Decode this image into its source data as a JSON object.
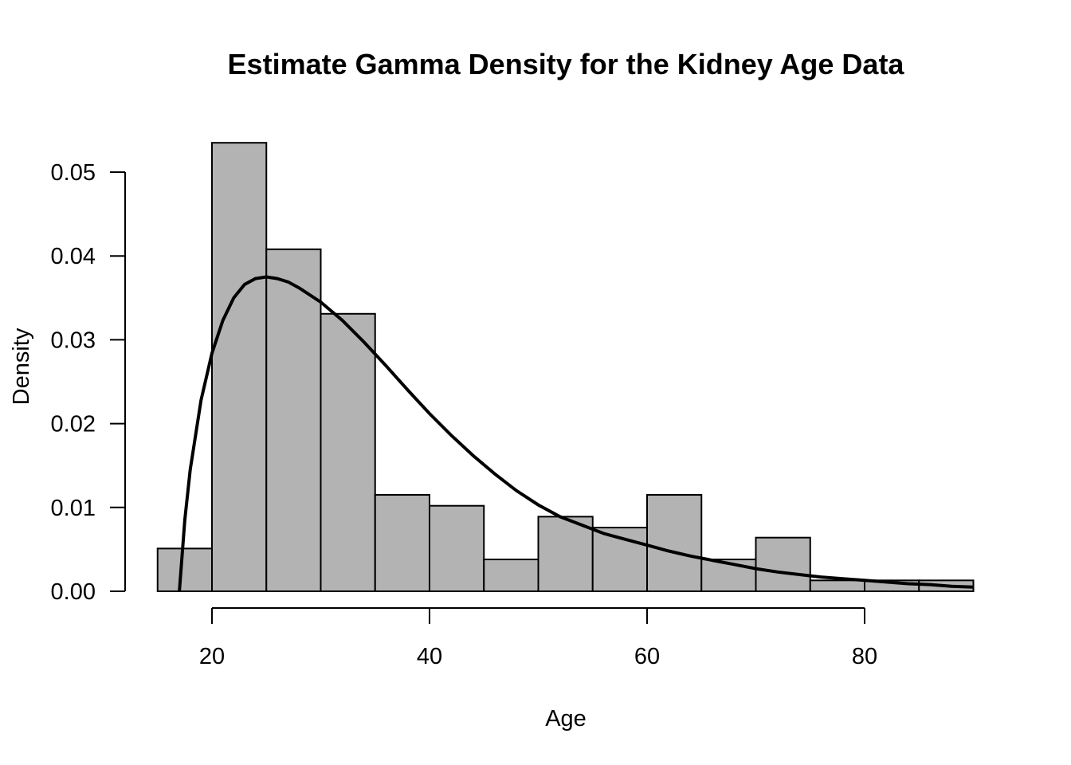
{
  "chart_data": {
    "type": "bar",
    "title": "Estimate Gamma Density for the Kidney Age Data",
    "xlabel": "Age",
    "ylabel": "Density",
    "xlim": [
      15,
      90
    ],
    "ylim": [
      0,
      0.05
    ],
    "x_ticks": [
      20,
      40,
      60,
      80
    ],
    "y_ticks": [
      0.0,
      0.01,
      0.02,
      0.03,
      0.04,
      0.05
    ],
    "x_tick_labels": [
      "20",
      "40",
      "60",
      "80"
    ],
    "y_tick_labels": [
      "0.00",
      "0.01",
      "0.02",
      "0.03",
      "0.04",
      "0.05"
    ],
    "bin_edges": [
      15,
      20,
      25,
      30,
      35,
      40,
      45,
      50,
      55,
      60,
      65,
      70,
      75,
      80,
      85,
      90
    ],
    "values": [
      0.0051,
      0.0535,
      0.0408,
      0.0331,
      0.0115,
      0.0102,
      0.0038,
      0.0089,
      0.0076,
      0.0115,
      0.0038,
      0.0064,
      0.0013,
      0.0013,
      0.0013
    ],
    "series": [
      {
        "type": "line",
        "x": [
          17,
          17.5,
          18,
          19,
          20,
          21,
          22,
          23,
          24,
          25,
          26,
          27,
          28,
          30,
          32,
          34,
          36,
          38,
          40,
          42,
          44,
          46,
          48,
          50,
          52,
          54,
          56,
          58,
          60,
          62,
          64,
          66,
          68,
          70,
          72,
          74,
          76,
          78,
          80,
          82,
          84,
          86,
          88,
          90
        ],
        "values": [
          0.0,
          0.0085,
          0.0145,
          0.0228,
          0.0284,
          0.0323,
          0.035,
          0.0366,
          0.0373,
          0.0375,
          0.0373,
          0.0369,
          0.0362,
          0.0345,
          0.0323,
          0.0297,
          0.0269,
          0.024,
          0.0212,
          0.0186,
          0.0162,
          0.014,
          0.012,
          0.0103,
          0.0089,
          0.0079,
          0.0069,
          0.0062,
          0.0055,
          0.0048,
          0.0042,
          0.0037,
          0.0032,
          0.0027,
          0.0023,
          0.002,
          0.0017,
          0.0015,
          0.0013,
          0.0011,
          0.0009,
          0.0008,
          0.0006,
          0.0005
        ]
      }
    ],
    "grid": false,
    "legend": "none"
  }
}
